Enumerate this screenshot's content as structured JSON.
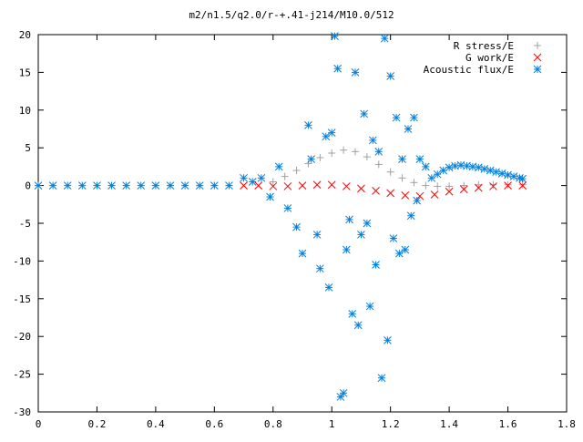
{
  "chart_data": {
    "type": "scatter",
    "title": "m2/n1.5/q2.0/r-+.41-j214/M10.0/512",
    "xlabel": "",
    "ylabel": "",
    "xlim": [
      0,
      1.8
    ],
    "ylim": [
      -30,
      20
    ],
    "x_ticks": [
      "0",
      "0.2",
      "0.4",
      "0.6",
      "0.8",
      "1",
      "1.2",
      "1.4",
      "1.6",
      "1.8"
    ],
    "y_ticks": [
      "20",
      "15",
      "10",
      "5",
      "0",
      "-5",
      "-10",
      "-15",
      "-20",
      "-25",
      "-30"
    ],
    "grid": false,
    "legend_position": "top-right",
    "series": [
      {
        "name": "R stress/E",
        "marker": "plus",
        "color": "#a0a0a0",
        "points": [
          [
            0.8,
            0.5
          ],
          [
            0.84,
            1.2
          ],
          [
            0.88,
            2.0
          ],
          [
            0.92,
            2.9
          ],
          [
            0.96,
            3.7
          ],
          [
            1.0,
            4.3
          ],
          [
            1.04,
            4.7
          ],
          [
            1.08,
            4.5
          ],
          [
            1.12,
            3.8
          ],
          [
            1.16,
            2.8
          ],
          [
            1.2,
            1.8
          ],
          [
            1.24,
            1.0
          ],
          [
            1.28,
            0.4
          ],
          [
            1.32,
            0.0
          ],
          [
            1.36,
            -0.1
          ],
          [
            1.4,
            -0.1
          ],
          [
            1.45,
            0.0
          ],
          [
            1.5,
            0.1
          ],
          [
            1.55,
            0.1
          ],
          [
            1.6,
            0.1
          ],
          [
            1.65,
            0.1
          ]
        ]
      },
      {
        "name": "G work/E",
        "marker": "cross",
        "color": "#ff0000",
        "points": [
          [
            0.7,
            0.0
          ],
          [
            0.75,
            0.0
          ],
          [
            0.8,
            -0.1
          ],
          [
            0.85,
            -0.1
          ],
          [
            0.9,
            0.0
          ],
          [
            0.95,
            0.1
          ],
          [
            1.0,
            0.1
          ],
          [
            1.05,
            -0.1
          ],
          [
            1.1,
            -0.4
          ],
          [
            1.15,
            -0.7
          ],
          [
            1.2,
            -1.0
          ],
          [
            1.25,
            -1.3
          ],
          [
            1.3,
            -1.4
          ],
          [
            1.35,
            -1.2
          ],
          [
            1.4,
            -0.8
          ],
          [
            1.45,
            -0.5
          ],
          [
            1.5,
            -0.3
          ],
          [
            1.55,
            -0.1
          ],
          [
            1.6,
            0.0
          ],
          [
            1.65,
            0.0
          ]
        ]
      },
      {
        "name": "Acoustic flux/E",
        "marker": "star",
        "color": "#0080e0",
        "points": [
          [
            0.0,
            0.0
          ],
          [
            0.05,
            0.0
          ],
          [
            0.1,
            0.0
          ],
          [
            0.15,
            0.0
          ],
          [
            0.2,
            0.0
          ],
          [
            0.25,
            0.0
          ],
          [
            0.3,
            0.0
          ],
          [
            0.35,
            0.0
          ],
          [
            0.4,
            0.0
          ],
          [
            0.45,
            0.0
          ],
          [
            0.5,
            0.0
          ],
          [
            0.55,
            0.0
          ],
          [
            0.6,
            0.0
          ],
          [
            0.65,
            0.0
          ],
          [
            0.7,
            1.0
          ],
          [
            0.73,
            0.5
          ],
          [
            0.76,
            1.0
          ],
          [
            0.79,
            -1.5
          ],
          [
            0.82,
            2.5
          ],
          [
            0.85,
            -3.0
          ],
          [
            0.88,
            -5.5
          ],
          [
            0.9,
            -9.0
          ],
          [
            0.92,
            8.0
          ],
          [
            0.93,
            3.5
          ],
          [
            0.95,
            -6.5
          ],
          [
            0.96,
            -11.0
          ],
          [
            0.98,
            6.5
          ],
          [
            0.99,
            -13.5
          ],
          [
            1.0,
            7.0
          ],
          [
            1.01,
            19.8
          ],
          [
            1.02,
            15.5
          ],
          [
            1.03,
            -28.0
          ],
          [
            1.04,
            -27.5
          ],
          [
            1.05,
            -8.5
          ],
          [
            1.06,
            -4.5
          ],
          [
            1.07,
            -17.0
          ],
          [
            1.08,
            15.0
          ],
          [
            1.09,
            -18.5
          ],
          [
            1.1,
            -6.5
          ],
          [
            1.11,
            9.5
          ],
          [
            1.12,
            -5.0
          ],
          [
            1.13,
            -16.0
          ],
          [
            1.14,
            6.0
          ],
          [
            1.15,
            -10.5
          ],
          [
            1.16,
            4.5
          ],
          [
            1.17,
            -25.5
          ],
          [
            1.18,
            19.5
          ],
          [
            1.19,
            -20.5
          ],
          [
            1.2,
            14.5
          ],
          [
            1.21,
            -7.0
          ],
          [
            1.22,
            9.0
          ],
          [
            1.23,
            -9.0
          ],
          [
            1.24,
            3.5
          ],
          [
            1.25,
            -8.5
          ],
          [
            1.26,
            7.5
          ],
          [
            1.27,
            -4.0
          ],
          [
            1.28,
            9.0
          ],
          [
            1.29,
            -2.0
          ],
          [
            1.3,
            3.5
          ],
          [
            1.32,
            2.5
          ],
          [
            1.34,
            1.0
          ],
          [
            1.36,
            1.5
          ],
          [
            1.38,
            2.0
          ],
          [
            1.4,
            2.4
          ],
          [
            1.42,
            2.6
          ],
          [
            1.44,
            2.7
          ],
          [
            1.46,
            2.6
          ],
          [
            1.48,
            2.5
          ],
          [
            1.5,
            2.4
          ],
          [
            1.52,
            2.2
          ],
          [
            1.54,
            2.0
          ],
          [
            1.56,
            1.8
          ],
          [
            1.58,
            1.6
          ],
          [
            1.6,
            1.4
          ],
          [
            1.62,
            1.2
          ],
          [
            1.64,
            1.0
          ],
          [
            1.65,
            0.9
          ]
        ]
      }
    ]
  }
}
